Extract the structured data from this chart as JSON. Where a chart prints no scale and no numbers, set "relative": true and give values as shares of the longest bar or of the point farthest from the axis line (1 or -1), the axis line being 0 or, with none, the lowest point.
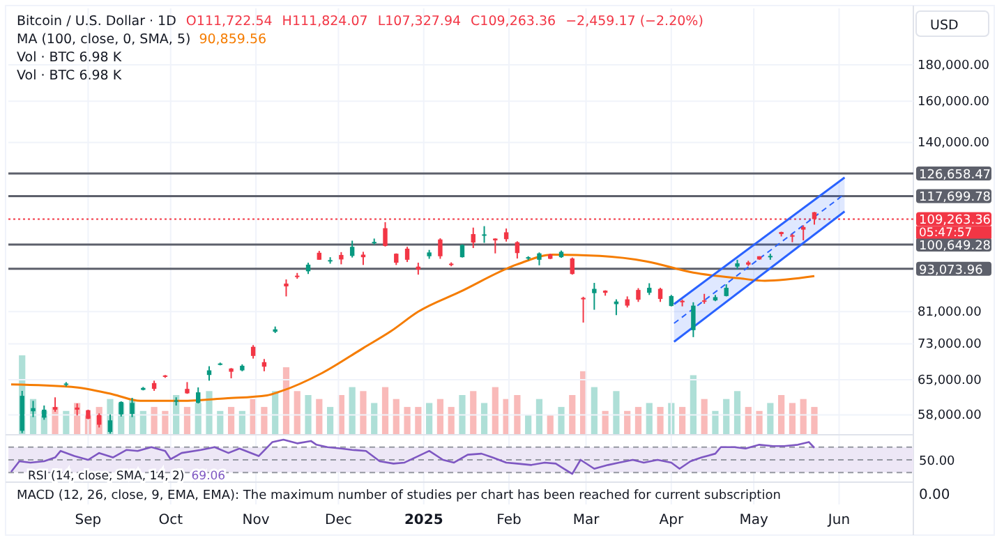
{
  "chart_data": [
    {
      "type": "candlestick",
      "title": "Bitcoin / U.S. Dollar · 1D",
      "annotations": [
        "O111,722.54",
        "H111,824.07",
        "L107,327.94",
        "C109,263.36",
        "−2,459.17 (−2.20%)",
        "MA (100, close, 0, SMA, 5)",
        "90,859.56",
        "05:47:57",
        "USD"
      ],
      "x": [
        "2024-08-08",
        "2024-08-12",
        "2024-08-16",
        "2024-08-20",
        "2024-08-24",
        "2024-08-28",
        "2024-09-01",
        "2024-09-05",
        "2024-09-09",
        "2024-09-13",
        "2024-09-17",
        "2024-09-21",
        "2024-09-25",
        "2024-09-29",
        "2024-10-03",
        "2024-10-07",
        "2024-10-11",
        "2024-10-15",
        "2024-10-19",
        "2024-10-23",
        "2024-10-27",
        "2024-10-31",
        "2024-11-04",
        "2024-11-08",
        "2024-11-12",
        "2024-11-16",
        "2024-11-20",
        "2024-11-24",
        "2024-11-28",
        "2024-12-02",
        "2024-12-06",
        "2024-12-10",
        "2024-12-14",
        "2024-12-18",
        "2024-12-22",
        "2024-12-26",
        "2024-12-30",
        "2025-01-03",
        "2025-01-07",
        "2025-01-11",
        "2025-01-15",
        "2025-01-19",
        "2025-01-23",
        "2025-01-27",
        "2025-01-31",
        "2025-02-04",
        "2025-02-08",
        "2025-02-12",
        "2025-02-16",
        "2025-02-20",
        "2025-02-24",
        "2025-02-28",
        "2025-03-04",
        "2025-03-08",
        "2025-03-12",
        "2025-03-16",
        "2025-03-20",
        "2025-03-24",
        "2025-03-28",
        "2025-04-01",
        "2025-04-05",
        "2025-04-09",
        "2025-04-13",
        "2025-04-17",
        "2025-04-21",
        "2025-04-25",
        "2025-04-29",
        "2025-05-03",
        "2025-05-07",
        "2025-05-11",
        "2025-05-15",
        "2025-05-19",
        "2025-05-23"
      ],
      "ohlc": [
        [
          55100,
          62700,
          54700,
          61700
        ],
        [
          58700,
          60700,
          57600,
          59300
        ],
        [
          57500,
          59800,
          57100,
          59000
        ],
        [
          59500,
          61400,
          58600,
          59000
        ],
        [
          64100,
          64500,
          63600,
          64200
        ],
        [
          59400,
          60200,
          57900,
          59000
        ],
        [
          58900,
          59000,
          57200,
          57300
        ],
        [
          58000,
          58300,
          55700,
          56200
        ],
        [
          54900,
          58100,
          54600,
          57000
        ],
        [
          58100,
          60600,
          57700,
          60500
        ],
        [
          58200,
          61300,
          57600,
          60300
        ],
        [
          62900,
          63500,
          62800,
          63300
        ],
        [
          64300,
          64800,
          62700,
          63100
        ],
        [
          65900,
          66000,
          65400,
          65600
        ],
        [
          60700,
          61400,
          59800,
          60800
        ],
        [
          63100,
          64500,
          62100,
          62200
        ],
        [
          60300,
          63400,
          60200,
          62400
        ],
        [
          66000,
          67900,
          64800,
          67000
        ],
        [
          68400,
          68700,
          68100,
          68500
        ],
        [
          67400,
          67500,
          65300,
          66700
        ],
        [
          67000,
          68300,
          66800,
          68000
        ],
        [
          72300,
          72700,
          69600,
          70200
        ],
        [
          68800,
          69500,
          66800,
          67800
        ],
        [
          75900,
          77200,
          75600,
          76500
        ],
        [
          88700,
          89900,
          85100,
          87900
        ],
        [
          91000,
          91800,
          90100,
          90600
        ],
        [
          92300,
          94900,
          91500,
          94300
        ],
        [
          98000,
          98600,
          95800,
          95800
        ],
        [
          95600,
          96600,
          94600,
          95700
        ],
        [
          97300,
          98200,
          94400,
          95900
        ],
        [
          97000,
          101900,
          96500,
          99900
        ],
        [
          97400,
          98300,
          94200,
          96600
        ],
        [
          101400,
          102600,
          100600,
          101500
        ],
        [
          106100,
          108200,
          100000,
          100200
        ],
        [
          97700,
          97800,
          94200,
          94900
        ],
        [
          99300,
          99900,
          95100,
          95800
        ],
        [
          93700,
          94900,
          91300,
          92800
        ],
        [
          96900,
          98900,
          96100,
          98100
        ],
        [
          102300,
          102700,
          96100,
          96900
        ],
        [
          94600,
          95000,
          93800,
          94500
        ],
        [
          96600,
          100700,
          96500,
          100500
        ],
        [
          104100,
          106300,
          99500,
          101300
        ],
        [
          103700,
          106800,
          101200,
          104000
        ],
        [
          102600,
          102700,
          97800,
          102000
        ],
        [
          104700,
          106000,
          101600,
          102400
        ],
        [
          101400,
          101700,
          96200,
          97900
        ],
        [
          96500,
          96900,
          95700,
          96600
        ],
        [
          95800,
          98100,
          94100,
          97800
        ],
        [
          97500,
          97700,
          96000,
          96100
        ],
        [
          96600,
          98700,
          96400,
          98300
        ],
        [
          96200,
          96500,
          91300,
          91500
        ],
        [
          84700,
          85000,
          78200,
          84300
        ],
        [
          86000,
          88900,
          81500,
          87200
        ],
        [
          86700,
          86800,
          85300,
          86100
        ],
        [
          83000,
          84300,
          80100,
          83700
        ],
        [
          84300,
          85100,
          82100,
          82600
        ],
        [
          86900,
          87400,
          83600,
          84200
        ],
        [
          86100,
          88800,
          85500,
          87500
        ],
        [
          87200,
          87500,
          83600,
          84400
        ],
        [
          82500,
          85500,
          82400,
          85200
        ],
        [
          83900,
          84200,
          82400,
          83500
        ],
        [
          76300,
          83500,
          74600,
          82600
        ],
        [
          84000,
          85800,
          83100,
          83700
        ],
        [
          84000,
          85500,
          83800,
          84900
        ],
        [
          85200,
          88500,
          85100,
          87500
        ],
        [
          93700,
          95800,
          92900,
          94700
        ],
        [
          95000,
          95500,
          93900,
          94300
        ],
        [
          96900,
          96900,
          95800,
          95900
        ],
        [
          96800,
          97700,
          95800,
          97000
        ],
        [
          104800,
          104900,
          103300,
          104100
        ],
        [
          103700,
          104200,
          101400,
          103600
        ],
        [
          106500,
          107100,
          102000,
          105600
        ],
        [
          111722.54,
          111824.07,
          107327.94,
          109263.36
        ]
      ],
      "colors": [
        "#089981",
        "#089981",
        "#089981",
        "#f23645",
        "#089981",
        "#f23645",
        "#f23645",
        "#f23645",
        "#089981",
        "#089981",
        "#089981",
        "#089981",
        "#f23645",
        "#f23645",
        "#089981",
        "#f23645",
        "#089981",
        "#089981",
        "#089981",
        "#f23645",
        "#089981",
        "#f23645",
        "#f23645",
        "#089981",
        "#f23645",
        "#f23645",
        "#089981",
        "#f23645",
        "#089981",
        "#f23645",
        "#089981",
        "#f23645",
        "#089981",
        "#f23645",
        "#f23645",
        "#f23645",
        "#f23645",
        "#089981",
        "#f23645",
        "#f23645",
        "#089981",
        "#f23645",
        "#089981",
        "#f23645",
        "#f23645",
        "#f23645",
        "#089981",
        "#089981",
        "#f23645",
        "#089981",
        "#f23645",
        "#f23645",
        "#089981",
        "#f23645",
        "#089981",
        "#f23645",
        "#f23645",
        "#089981",
        "#f23645",
        "#089981",
        "#f23645",
        "#089981",
        "#f23645",
        "#089981",
        "#089981",
        "#089981",
        "#f23645",
        "#f23645",
        "#089981",
        "#f23645",
        "#f23645",
        "#f23645",
        "#f23645"
      ],
      "series": [
        {
          "type": "line",
          "color": "#f57c00",
          "x": [
            "2024-08-04",
            "2024-08-26",
            "2024-09-10",
            "2024-09-20",
            "2024-10-05",
            "2024-10-21",
            "2024-11-05",
            "2024-11-10",
            "2024-11-25",
            "2024-12-10",
            "2024-12-20",
            "2024-12-30",
            "2025-01-14",
            "2025-02-04",
            "2025-02-17",
            "2025-03-06",
            "2025-03-23",
            "2025-04-09",
            "2025-04-26",
            "2025-05-05",
            "2025-05-23"
          ],
          "values": [
            64000,
            63500,
            62000,
            60700,
            60700,
            61200,
            61800,
            62600,
            66400,
            72000,
            76000,
            81000,
            86300,
            94400,
            97400,
            97000,
            95300,
            91900,
            90200,
            89500,
            90860
          ]
        },
        {
          "type": "line",
          "color": "#2962ff",
          "x": [
            "2025-04-02",
            "2025-06-03"
          ],
          "values": [
            83000,
            125000
          ]
        },
        {
          "type": "line",
          "color": "#2962ff",
          "line_style": "dashed",
          "x": [
            "2025-04-02",
            "2025-06-03"
          ],
          "values": [
            78000,
            118500
          ]
        },
        {
          "type": "line",
          "color": "#2962ff",
          "x": [
            "2025-04-02",
            "2025-06-03"
          ],
          "values": [
            73500,
            112000
          ]
        }
      ],
      "xlim": [
        "2024-08-03",
        "2025-06-28"
      ],
      "xticks": [
        {
          "value": "2024-09-01",
          "label": "Sep"
        },
        {
          "value": "2024-10-01",
          "label": "Oct"
        },
        {
          "value": "2024-11-01",
          "label": "Nov"
        },
        {
          "value": "2024-12-01",
          "label": "Dec"
        },
        {
          "value": "2025-01-01",
          "label": "2025"
        },
        {
          "value": "2025-02-01",
          "label": "Feb"
        },
        {
          "value": "2025-03-01",
          "label": "Mar"
        },
        {
          "value": "2025-04-01",
          "label": "Apr"
        },
        {
          "value": "2025-05-01",
          "label": "May"
        },
        {
          "value": "2025-06-01",
          "label": "Jun"
        }
      ],
      "ylim": [
        54400,
        216000
      ],
      "yticks": [
        {
          "value": 58000,
          "label": "58,000.00"
        },
        {
          "value": 65000,
          "label": "65,000.00"
        },
        {
          "value": 73000,
          "label": "73,000.00"
        },
        {
          "value": 81000,
          "label": "81,000.00"
        },
        {
          "value": 140000,
          "label": "140,000.00"
        },
        {
          "value": 160000,
          "label": "160,000.00"
        },
        {
          "value": 180000,
          "label": "180,000.00"
        }
      ],
      "log": true,
      "grid": true,
      "ref_lines": [
        {
          "axis": "y",
          "value": 126658.47,
          "label": "126,658.47",
          "color": "#5d606b"
        },
        {
          "axis": "y",
          "value": 117699.78,
          "label": "117,699.78",
          "color": "#5d606b"
        },
        {
          "axis": "y",
          "value": 109263.36,
          "label": "109,263.36",
          "color": "#f23645",
          "line_style": "dotted"
        },
        {
          "axis": "y",
          "value": 100649.28,
          "label": "100,649.28",
          "color": "#5d606b"
        },
        {
          "axis": "y",
          "value": 93073.96,
          "label": "93,073.96",
          "color": "#5d606b"
        }
      ]
    },
    {
      "type": "bar",
      "relative": true,
      "tick_labels": false,
      "annotations": [
        "Vol · BTC 6.98 K",
        "Vol · BTC 6.98 K"
      ],
      "xlim": [
        "2024-08-03",
        "2025-06-28"
      ],
      "x": [
        "2024-08-08",
        "2024-08-12",
        "2024-08-16",
        "2024-08-20",
        "2024-08-24",
        "2024-08-28",
        "2024-09-01",
        "2024-09-05",
        "2024-09-09",
        "2024-09-13",
        "2024-09-17",
        "2024-09-21",
        "2024-09-25",
        "2024-09-29",
        "2024-10-03",
        "2024-10-07",
        "2024-10-11",
        "2024-10-15",
        "2024-10-19",
        "2024-10-23",
        "2024-10-27",
        "2024-10-31",
        "2024-11-04",
        "2024-11-08",
        "2024-11-12",
        "2024-11-16",
        "2024-11-20",
        "2024-11-24",
        "2024-11-28",
        "2024-12-02",
        "2024-12-06",
        "2024-12-10",
        "2024-12-14",
        "2024-12-18",
        "2024-12-22",
        "2024-12-26",
        "2024-12-30",
        "2025-01-03",
        "2025-01-07",
        "2025-01-11",
        "2025-01-15",
        "2025-01-19",
        "2025-01-23",
        "2025-01-27",
        "2025-01-31",
        "2025-02-04",
        "2025-02-08",
        "2025-02-12",
        "2025-02-16",
        "2025-02-20",
        "2025-02-24",
        "2025-02-28",
        "2025-03-04",
        "2025-03-08",
        "2025-03-12",
        "2025-03-16",
        "2025-03-20",
        "2025-03-24",
        "2025-03-28",
        "2025-04-01",
        "2025-04-05",
        "2025-04-09",
        "2025-04-13",
        "2025-04-17",
        "2025-04-21",
        "2025-04-25",
        "2025-04-29",
        "2025-05-03",
        "2025-05-07",
        "2025-05-11",
        "2025-05-15",
        "2025-05-19",
        "2025-05-23"
      ],
      "values": [
        1,
        0.45,
        0.3,
        0.35,
        0.3,
        0.4,
        0.25,
        0.35,
        0.45,
        0.4,
        0.45,
        0.3,
        0.35,
        0.3,
        0.5,
        0.35,
        0.4,
        0.55,
        0.3,
        0.35,
        0.3,
        0.45,
        0.35,
        0.55,
        0.85,
        0.55,
        0.5,
        0.45,
        0.35,
        0.5,
        0.6,
        0.55,
        0.4,
        0.6,
        0.45,
        0.35,
        0.35,
        0.4,
        0.45,
        0.35,
        0.5,
        0.55,
        0.4,
        0.6,
        0.45,
        0.5,
        0.25,
        0.45,
        0.25,
        0.35,
        0.5,
        0.8,
        0.6,
        0.3,
        0.55,
        0.3,
        0.35,
        0.4,
        0.35,
        0.4,
        0.35,
        0.75,
        0.45,
        0.3,
        0.45,
        0.55,
        0.35,
        0.3,
        0.4,
        0.5,
        0.4,
        0.45,
        0.35
      ],
      "colors": [
        "#9ad7cd",
        "#9ad7cd",
        "#9ad7cd",
        "#f8a9a8",
        "#9ad7cd",
        "#f8a9a8",
        "#f8a9a8",
        "#f8a9a8",
        "#9ad7cd",
        "#9ad7cd",
        "#9ad7cd",
        "#9ad7cd",
        "#f8a9a8",
        "#f8a9a8",
        "#9ad7cd",
        "#f8a9a8",
        "#9ad7cd",
        "#9ad7cd",
        "#9ad7cd",
        "#f8a9a8",
        "#9ad7cd",
        "#f8a9a8",
        "#f8a9a8",
        "#9ad7cd",
        "#f8a9a8",
        "#f8a9a8",
        "#9ad7cd",
        "#f8a9a8",
        "#9ad7cd",
        "#f8a9a8",
        "#9ad7cd",
        "#f8a9a8",
        "#9ad7cd",
        "#f8a9a8",
        "#f8a9a8",
        "#f8a9a8",
        "#f8a9a8",
        "#9ad7cd",
        "#f8a9a8",
        "#f8a9a8",
        "#9ad7cd",
        "#f8a9a8",
        "#9ad7cd",
        "#f8a9a8",
        "#f8a9a8",
        "#f8a9a8",
        "#9ad7cd",
        "#9ad7cd",
        "#f8a9a8",
        "#9ad7cd",
        "#f8a9a8",
        "#f8a9a8",
        "#9ad7cd",
        "#f8a9a8",
        "#9ad7cd",
        "#f8a9a8",
        "#f8a9a8",
        "#9ad7cd",
        "#f8a9a8",
        "#9ad7cd",
        "#f8a9a8",
        "#9ad7cd",
        "#f8a9a8",
        "#9ad7cd",
        "#9ad7cd",
        "#9ad7cd",
        "#f8a9a8",
        "#f8a9a8",
        "#9ad7cd",
        "#f8a9a8",
        "#f8a9a8",
        "#f8a9a8",
        "#f8a9a8"
      ]
    },
    {
      "type": "line",
      "title": "RSI (14, close, SMA, 14, 2)",
      "annotations": [
        "69.06",
        "50.00"
      ],
      "tick_labels": false,
      "relative": true,
      "xlim": [
        "2024-08-03",
        "2025-06-28"
      ],
      "bands": [
        {
          "axis": "y",
          "from": 0.04,
          "to": 0.78,
          "color": "#ede7f6"
        }
      ],
      "ref_lines": [
        {
          "axis": "y",
          "value": 0.78,
          "color": "#9598a1",
          "line_style": "dashed"
        },
        {
          "axis": "y",
          "value": 0.41,
          "color": "#9598a1",
          "line_style": "dashed"
        },
        {
          "axis": "y",
          "value": 0.04,
          "color": "#9598a1",
          "line_style": "dashed"
        }
      ],
      "series": [
        {
          "color": "#7e57c2",
          "x": [
            "2024-08-04",
            "2024-08-07",
            "2024-08-11",
            "2024-08-16",
            "2024-08-20",
            "2024-08-22",
            "2024-08-27",
            "2024-09-01",
            "2024-09-05",
            "2024-09-10",
            "2024-09-15",
            "2024-09-19",
            "2024-09-24",
            "2024-09-29",
            "2024-10-01",
            "2024-10-05",
            "2024-10-12",
            "2024-10-17",
            "2024-10-22",
            "2024-10-26",
            "2024-11-02",
            "2024-11-07",
            "2024-11-11",
            "2024-11-16",
            "2024-11-21",
            "2024-11-23",
            "2024-11-27",
            "2024-12-02",
            "2024-12-06",
            "2024-12-11",
            "2024-12-16",
            "2024-12-21",
            "2024-12-25",
            "2024-12-30",
            "2025-01-03",
            "2025-01-08",
            "2025-01-12",
            "2025-01-17",
            "2025-01-22",
            "2025-01-26",
            "2025-01-31",
            "2025-02-04",
            "2025-02-09",
            "2025-02-14",
            "2025-02-18",
            "2025-02-21",
            "2025-02-24",
            "2025-02-27",
            "2025-03-04",
            "2025-03-09",
            "2025-03-13",
            "2025-03-18",
            "2025-03-22",
            "2025-03-27",
            "2025-04-01",
            "2025-04-04",
            "2025-04-08",
            "2025-04-12",
            "2025-04-17",
            "2025-04-19",
            "2025-04-24",
            "2025-04-28",
            "2025-05-03",
            "2025-05-08",
            "2025-05-12",
            "2025-05-17",
            "2025-05-21",
            "2025-05-23"
          ],
          "values": [
            0.06,
            0.37,
            0.33,
            0.37,
            0.48,
            0.67,
            0.52,
            0.41,
            0.61,
            0.48,
            0.7,
            0.67,
            0.78,
            0.67,
            0.43,
            0.61,
            0.7,
            0.78,
            0.61,
            0.74,
            0.52,
            0.93,
            1,
            0.89,
            0.96,
            0.85,
            0.78,
            0.74,
            0.7,
            0.67,
            0.37,
            0.3,
            0.33,
            0.52,
            0.67,
            0.41,
            0.33,
            0.56,
            0.59,
            0.48,
            0.33,
            0.3,
            0.26,
            0.33,
            0.3,
            0.15,
            0,
            0.41,
            0.15,
            0.26,
            0.33,
            0.41,
            0.33,
            0.41,
            0.33,
            0.15,
            0.37,
            0.48,
            0.59,
            0.78,
            0.78,
            0.74,
            0.85,
            0.81,
            0.81,
            0.85,
            0.93,
            0.76
          ]
        }
      ]
    },
    {
      "type": "other",
      "title": "MACD (12, 26, close, 9, EMA, EMA): The maximum number of studies per chart has been reached for current subscription",
      "annotations": [
        "0.00"
      ]
    }
  ]
}
